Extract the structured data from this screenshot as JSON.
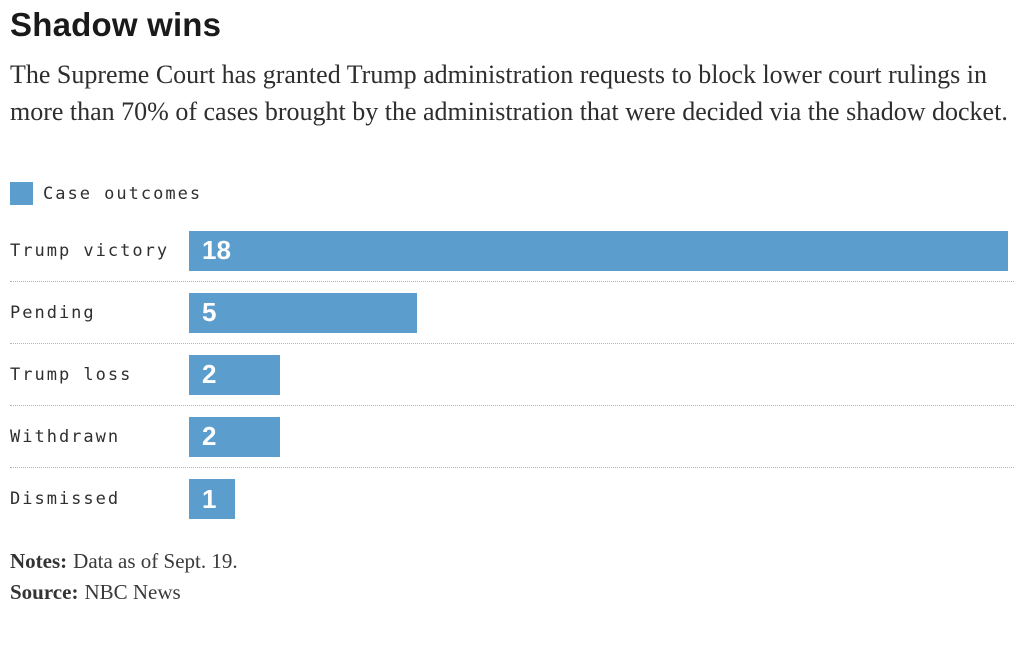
{
  "title": "Shadow wins",
  "subtitle": "The Supreme Court has granted Trump administration requests to block lower court rulings in more than 70% of cases brought by the administration that were decided via the shadow docket.",
  "legend": {
    "label": "Case outcomes"
  },
  "colors": {
    "bar": "#5b9dcc",
    "title_text": "#1a1a1a",
    "subtitle_text": "#2e2e2e",
    "category_text": "#2f2f2f",
    "value_text": "#ffffff",
    "separator": "#b5b5b5"
  },
  "chart_data": {
    "type": "bar",
    "orientation": "horizontal",
    "title": "Shadow wins",
    "legend_entries": [
      "Case outcomes"
    ],
    "legend_position": "top-left",
    "categories": [
      "Trump victory",
      "Pending",
      "Trump loss",
      "Withdrawn",
      "Dismissed"
    ],
    "values": [
      18,
      5,
      2,
      2,
      1
    ],
    "xlim": [
      0,
      18
    ],
    "grid": false,
    "value_labels": "inside-left",
    "bar_color": "#5b9dcc",
    "row_separator": "dotted"
  },
  "notes": {
    "label": "Notes:",
    "text": "Data as of Sept. 19."
  },
  "source": {
    "label": "Source:",
    "text": "NBC News"
  }
}
